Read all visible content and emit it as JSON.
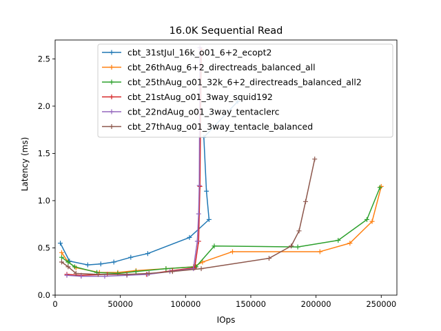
{
  "chart_data": {
    "type": "line",
    "title": "16.0K  Sequential Read",
    "xlabel": "IOps",
    "ylabel": "Latency (ms)",
    "xlim": [
      0,
      262000
    ],
    "ylim": [
      0,
      2.7
    ],
    "xticks": [
      0,
      50000,
      100000,
      150000,
      200000,
      250000
    ],
    "xtick_labels": [
      "0",
      "50000",
      "100000",
      "150000",
      "200000",
      "250000"
    ],
    "yticks": [
      0.0,
      0.5,
      1.0,
      1.5,
      2.0,
      2.5
    ],
    "ytick_labels": [
      "0.0",
      "0.5",
      "1.0",
      "1.5",
      "2.0",
      "2.5"
    ],
    "grid": false,
    "legend_position": "top-center",
    "marker": "plus",
    "series": [
      {
        "name": "cbt_31stJul_16k_o01_6+2_ecopt2",
        "color": "#1f77b4",
        "points": [
          [
            4000,
            0.55
          ],
          [
            11000,
            0.36
          ],
          [
            25000,
            0.32
          ],
          [
            35000,
            0.33
          ],
          [
            45000,
            0.35
          ],
          [
            58000,
            0.4
          ],
          [
            71000,
            0.44
          ],
          [
            103000,
            0.61
          ],
          [
            118000,
            0.8
          ],
          [
            116000,
            1.1
          ],
          [
            114000,
            1.67
          ],
          [
            140000,
            2.05
          ]
        ]
      },
      {
        "name": "cbt_26thAug_6+2_directreads_balanced_all",
        "color": "#ff7f0e",
        "points": [
          [
            5000,
            0.45
          ],
          [
            10000,
            0.35
          ],
          [
            16000,
            0.29
          ],
          [
            34000,
            0.24
          ],
          [
            48000,
            0.24
          ],
          [
            62000,
            0.26
          ],
          [
            85000,
            0.28
          ],
          [
            106000,
            0.3
          ],
          [
            113000,
            0.35
          ],
          [
            136000,
            0.46
          ],
          [
            203000,
            0.46
          ],
          [
            226000,
            0.55
          ],
          [
            243000,
            0.78
          ],
          [
            250000,
            1.15
          ]
        ]
      },
      {
        "name": "cbt_25thAug_o01_32k_6+2_directreads_balanced_all2",
        "color": "#2ca02c",
        "points": [
          [
            5000,
            0.4
          ],
          [
            10000,
            0.35
          ],
          [
            15000,
            0.3
          ],
          [
            32000,
            0.24
          ],
          [
            48000,
            0.23
          ],
          [
            62000,
            0.25
          ],
          [
            85000,
            0.28
          ],
          [
            108000,
            0.3
          ],
          [
            122000,
            0.52
          ],
          [
            186000,
            0.51
          ],
          [
            217000,
            0.58
          ],
          [
            239000,
            0.8
          ],
          [
            249000,
            1.14
          ]
        ]
      },
      {
        "name": "cbt_21stAug_o01_3way_squid192",
        "color": "#d62728",
        "points": [
          [
            9000,
            0.22
          ],
          [
            20000,
            0.21
          ],
          [
            40000,
            0.22
          ],
          [
            55000,
            0.22
          ],
          [
            70000,
            0.22
          ],
          [
            90000,
            0.26
          ],
          [
            107000,
            0.29
          ],
          [
            110000,
            0.57
          ],
          [
            111000,
            1.15
          ],
          [
            112000,
            2.6
          ]
        ]
      },
      {
        "name": "cbt_22ndAug_o01_3way_tentaclerc",
        "color": "#9467bd",
        "points": [
          [
            9000,
            0.21
          ],
          [
            20000,
            0.2
          ],
          [
            38000,
            0.2
          ],
          [
            55000,
            0.21
          ],
          [
            71000,
            0.22
          ],
          [
            88000,
            0.25
          ],
          [
            106000,
            0.28
          ],
          [
            109000,
            0.57
          ],
          [
            110000,
            0.86
          ],
          [
            110500,
            1.16
          ],
          [
            111000,
            2.62
          ]
        ]
      },
      {
        "name": "cbt_27thAug_o01_3way_tentacle_balanced",
        "color": "#8c564b",
        "points": [
          [
            5000,
            0.35
          ],
          [
            10000,
            0.3
          ],
          [
            16000,
            0.23
          ],
          [
            33000,
            0.22
          ],
          [
            55000,
            0.22
          ],
          [
            72000,
            0.23
          ],
          [
            90000,
            0.25
          ],
          [
            112000,
            0.28
          ],
          [
            164000,
            0.39
          ],
          [
            181000,
            0.52
          ],
          [
            187000,
            0.68
          ],
          [
            192000,
            0.99
          ],
          [
            199000,
            1.44
          ]
        ]
      }
    ]
  }
}
